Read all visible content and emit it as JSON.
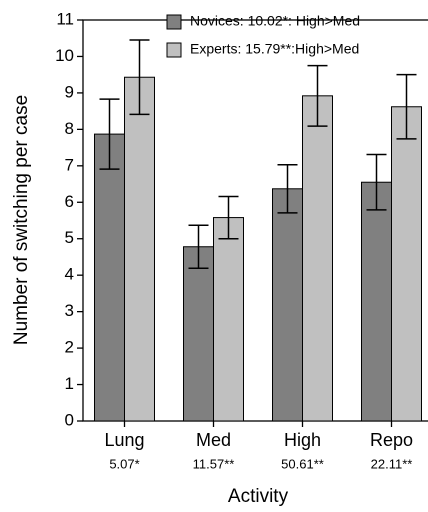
{
  "chart_data": {
    "type": "bar",
    "y_label": "Number of switching per case",
    "x_label": "Activity",
    "categories": [
      "Lung",
      "Med",
      "High",
      "Repo"
    ],
    "category_notes": [
      "5.07*",
      "11.57**",
      "50.61**",
      "22.11**"
    ],
    "series": [
      {
        "name": "Novices: 10.02*: High>Med",
        "color": "#808080",
        "values": [
          7.87,
          4.78,
          6.37,
          6.55
        ],
        "errors": [
          0.96,
          0.59,
          0.66,
          0.76
        ]
      },
      {
        "name": "Experts: 15.79**:High>Med",
        "color": "#c0c0c0",
        "values": [
          9.43,
          5.58,
          8.92,
          8.62
        ],
        "errors": [
          1.02,
          0.58,
          0.83,
          0.88
        ]
      }
    ],
    "ylim": [
      0,
      11
    ],
    "yticks": [
      0,
      1,
      2,
      3,
      4,
      5,
      6,
      7,
      8,
      9,
      10,
      11
    ]
  }
}
